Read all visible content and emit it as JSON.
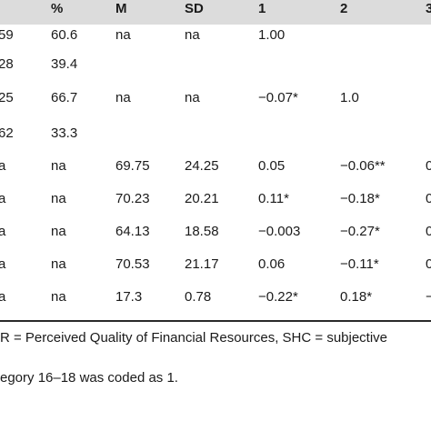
{
  "table": {
    "headers": [
      "",
      "%",
      "M",
      "SD",
      "1",
      "2",
      "3"
    ],
    "rows": [
      [
        "59",
        "60.6",
        "na",
        "na",
        "1.00",
        "",
        ""
      ],
      [
        "28",
        "39.4",
        "",
        "",
        "",
        "",
        ""
      ],
      [
        "25",
        "66.7",
        "na",
        "na",
        "−0.07*",
        "1.0",
        ""
      ],
      [
        "62",
        "33.3",
        "",
        "",
        "",
        "",
        ""
      ],
      [
        "a",
        "na",
        "69.75",
        "24.25",
        "0.05",
        "−0.06**",
        "0"
      ],
      [
        "a",
        "na",
        "70.23",
        "20.21",
        "0.11*",
        "−0.18*",
        "0"
      ],
      [
        "a",
        "na",
        "64.13",
        "18.58",
        "−0.003",
        "−0.27*",
        "0"
      ],
      [
        "a",
        "na",
        "70.53",
        "21.17",
        "0.06",
        "−0.11*",
        "0"
      ],
      [
        "a",
        "na",
        "17.3",
        "0.78",
        "−0.22*",
        "0.18*",
        "−"
      ]
    ]
  },
  "footnotes": [
    "R = Perceived Quality of Financial Resources, SHC = subjective",
    "egory 16–18 was coded as 1."
  ]
}
